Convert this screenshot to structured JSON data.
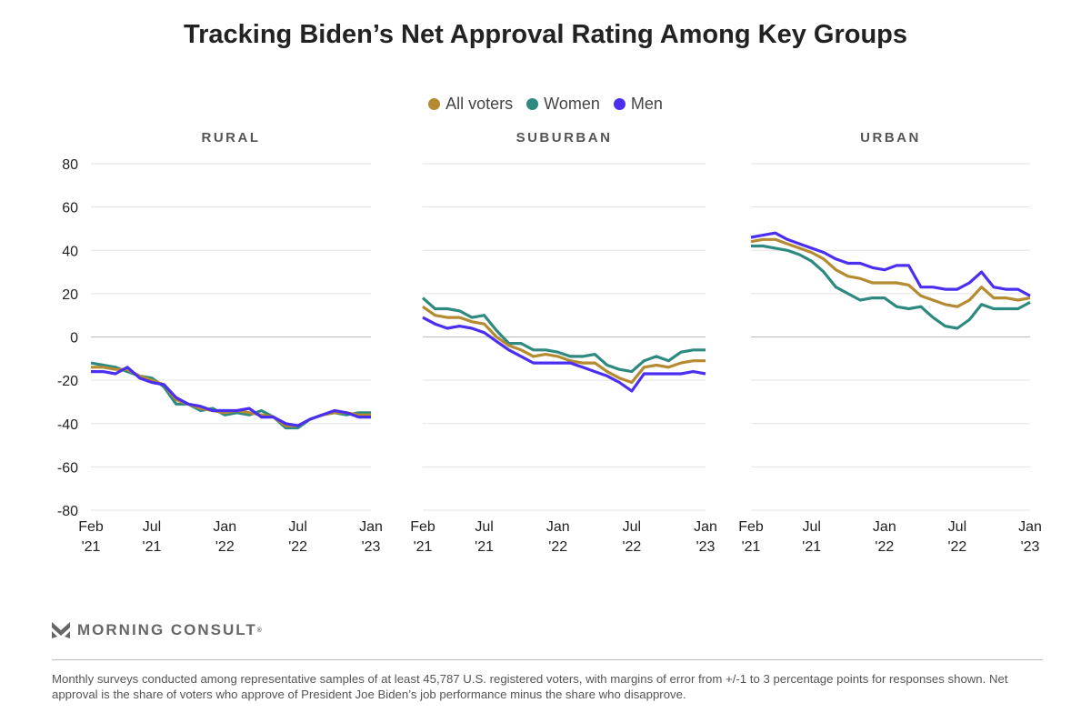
{
  "title": "Tracking Biden’s Net Approval Rating Among Key Groups",
  "legend": [
    {
      "name": "All voters",
      "color": "#b58b32"
    },
    {
      "name": "Women",
      "color": "#2e8a80"
    },
    {
      "name": "Men",
      "color": "#4b2ff0"
    }
  ],
  "chart_data": [
    {
      "type": "line",
      "title": "RURAL",
      "x_ticks": [
        [
          "Feb",
          "'21"
        ],
        [
          "Jul",
          "'21"
        ],
        [
          "Jan",
          "'22"
        ],
        [
          "Jul",
          "'22"
        ],
        [
          "Jan",
          "'23"
        ]
      ],
      "y_ticks": [
        80,
        60,
        40,
        20,
        0,
        -20,
        -40,
        -60,
        -80
      ],
      "ylim": [
        -80,
        80
      ],
      "grid": true,
      "x": [
        "2021-02",
        "2021-03",
        "2021-04",
        "2021-05",
        "2021-06",
        "2021-07",
        "2021-08",
        "2021-09",
        "2021-10",
        "2021-11",
        "2021-12",
        "2022-01",
        "2022-02",
        "2022-03",
        "2022-04",
        "2022-05",
        "2022-06",
        "2022-07",
        "2022-08",
        "2022-09",
        "2022-10",
        "2022-11",
        "2022-12",
        "2023-01"
      ],
      "series": [
        {
          "name": "All voters",
          "values": [
            -14,
            -14,
            -15,
            -15,
            -18,
            -20,
            -22,
            -29,
            -31,
            -33,
            -34,
            -35,
            -34,
            -35,
            -36,
            -37,
            -41,
            -41,
            -38,
            -36,
            -35,
            -35,
            -36,
            -36
          ]
        },
        {
          "name": "Women",
          "values": [
            -12,
            -13,
            -14,
            -16,
            -18,
            -19,
            -23,
            -31,
            -31,
            -34,
            -33,
            -36,
            -35,
            -36,
            -34,
            -37,
            -42,
            -42,
            -38,
            -36,
            -35,
            -36,
            -35,
            -35
          ]
        },
        {
          "name": "Men",
          "values": [
            -16,
            -16,
            -17,
            -14,
            -19,
            -21,
            -22,
            -28,
            -31,
            -32,
            -34,
            -34,
            -34,
            -33,
            -37,
            -37,
            -40,
            -41,
            -38,
            -36,
            -34,
            -35,
            -37,
            -37
          ]
        }
      ]
    },
    {
      "type": "line",
      "title": "SUBURBAN",
      "x_ticks": [
        [
          "Feb",
          "'21"
        ],
        [
          "Jul",
          "'21"
        ],
        [
          "Jan",
          "'22"
        ],
        [
          "Jul",
          "'22"
        ],
        [
          "Jan",
          "'23"
        ]
      ],
      "ylim": [
        -80,
        80
      ],
      "grid": true,
      "x": [
        "2021-02",
        "2021-03",
        "2021-04",
        "2021-05",
        "2021-06",
        "2021-07",
        "2021-08",
        "2021-09",
        "2021-10",
        "2021-11",
        "2021-12",
        "2022-01",
        "2022-02",
        "2022-03",
        "2022-04",
        "2022-05",
        "2022-06",
        "2022-07",
        "2022-08",
        "2022-09",
        "2022-10",
        "2022-11",
        "2022-12",
        "2023-01"
      ],
      "series": [
        {
          "name": "All voters",
          "values": [
            14,
            10,
            9,
            9,
            7,
            6,
            0,
            -4,
            -6,
            -9,
            -8,
            -9,
            -11,
            -12,
            -12,
            -16,
            -19,
            -21,
            -14,
            -13,
            -14,
            -12,
            -11,
            -11
          ]
        },
        {
          "name": "Women",
          "values": [
            18,
            13,
            13,
            12,
            9,
            10,
            3,
            -3,
            -3,
            -6,
            -6,
            -7,
            -9,
            -9,
            -8,
            -13,
            -15,
            -16,
            -11,
            -9,
            -11,
            -7,
            -6,
            -6
          ]
        },
        {
          "name": "Men",
          "values": [
            9,
            6,
            4,
            5,
            4,
            2,
            -2,
            -6,
            -9,
            -12,
            -12,
            -12,
            -12,
            -14,
            -16,
            -18,
            -21,
            -25,
            -17,
            -17,
            -17,
            -17,
            -16,
            -17
          ]
        }
      ]
    },
    {
      "type": "line",
      "title": "URBAN",
      "x_ticks": [
        [
          "Feb",
          "'21"
        ],
        [
          "Jul",
          "'21"
        ],
        [
          "Jan",
          "'22"
        ],
        [
          "Jul",
          "'22"
        ],
        [
          "Jan",
          "'23"
        ]
      ],
      "ylim": [
        -80,
        80
      ],
      "grid": true,
      "x": [
        "2021-02",
        "2021-03",
        "2021-04",
        "2021-05",
        "2021-06",
        "2021-07",
        "2021-08",
        "2021-09",
        "2021-10",
        "2021-11",
        "2021-12",
        "2022-01",
        "2022-02",
        "2022-03",
        "2022-04",
        "2022-05",
        "2022-06",
        "2022-07",
        "2022-08",
        "2022-09",
        "2022-10",
        "2022-11",
        "2022-12",
        "2023-01"
      ],
      "series": [
        {
          "name": "All voters",
          "values": [
            44,
            45,
            45,
            43,
            41,
            39,
            36,
            31,
            28,
            27,
            25,
            25,
            25,
            24,
            19,
            17,
            15,
            14,
            17,
            23,
            18,
            18,
            17,
            18
          ]
        },
        {
          "name": "Women",
          "values": [
            42,
            42,
            41,
            40,
            38,
            35,
            30,
            23,
            20,
            17,
            18,
            18,
            14,
            13,
            14,
            9,
            5,
            4,
            8,
            15,
            13,
            13,
            13,
            16
          ]
        },
        {
          "name": "Men",
          "values": [
            46,
            47,
            48,
            45,
            43,
            41,
            39,
            36,
            34,
            34,
            32,
            31,
            33,
            33,
            23,
            23,
            22,
            22,
            25,
            30,
            23,
            22,
            22,
            19
          ]
        }
      ]
    }
  ],
  "logo": {
    "text": "MORNING CONSULT",
    "mark": "®"
  },
  "footnote": "Monthly surveys conducted among representative samples of at least 45,787 U.S. registered voters, with margins of error from +/-1 to 3 percentage points for responses shown. Net approval is the share of voters who approve of President Joe Biden’s job performance minus the share who disapprove."
}
